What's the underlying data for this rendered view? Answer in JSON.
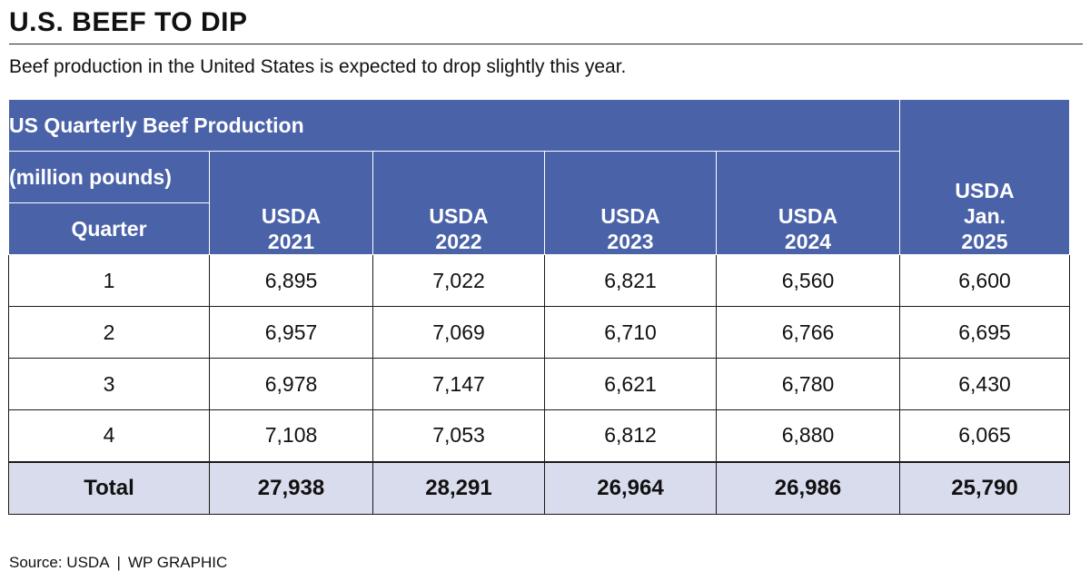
{
  "header": {
    "title": "U.S. BEEF TO DIP",
    "subtitle": "Beef production in the United States is expected to drop slightly this year."
  },
  "chart_data": {
    "type": "table",
    "title": "US Quarterly Beef Production",
    "units": "(million pounds)",
    "row_header": "Quarter",
    "columns": [
      [
        "USDA",
        "2021"
      ],
      [
        "USDA",
        "2022"
      ],
      [
        "USDA",
        "2023"
      ],
      [
        "USDA",
        "2024"
      ],
      [
        "USDA",
        "Jan.",
        "2025"
      ]
    ],
    "rows": [
      {
        "label": "1",
        "values": [
          "6,895",
          "7,022",
          "6,821",
          "6,560",
          "6,600"
        ]
      },
      {
        "label": "2",
        "values": [
          "6,957",
          "7,069",
          "6,710",
          "6,766",
          "6,695"
        ]
      },
      {
        "label": "3",
        "values": [
          "6,978",
          "7,147",
          "6,621",
          "6,780",
          "6,430"
        ]
      },
      {
        "label": "4",
        "values": [
          "7,108",
          "7,053",
          "6,812",
          "6,880",
          "6,065"
        ]
      }
    ],
    "total": {
      "label": "Total",
      "values": [
        "27,938",
        "28,291",
        "26,964",
        "26,986",
        "25,790"
      ]
    }
  },
  "footer": {
    "source": "Source: USDA",
    "separator": "|",
    "credit": "WP GRAPHIC"
  },
  "colors": {
    "header_bg": "#4a62a8",
    "total_bg": "#d9dcec"
  }
}
